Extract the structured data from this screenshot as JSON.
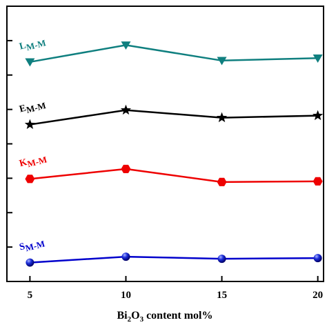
{
  "chart_data": {
    "type": "line",
    "xlabel": {
      "base": "Bi",
      "sub1": "2",
      "mid": "O",
      "sub2": "3",
      "rest": " content mol%"
    },
    "x": [
      5,
      10,
      15,
      20
    ],
    "xlim": [
      3.8,
      20.3
    ],
    "xticks": [
      "5",
      "10",
      "15",
      "20"
    ],
    "ylim": [
      0,
      8
    ],
    "y_tick_count": 8,
    "series": [
      {
        "name": "S",
        "sub": "M-M",
        "color": "#0000cc",
        "marker": "sphere",
        "values": [
          0.55,
          0.72,
          0.66,
          0.68
        ]
      },
      {
        "name": "K",
        "sub": "M-M",
        "color": "#ee0000",
        "marker": "hexagon",
        "values": [
          2.98,
          3.27,
          2.89,
          2.91
        ]
      },
      {
        "name": "E",
        "sub": "M-M",
        "color": "#000000",
        "marker": "star",
        "values": [
          4.56,
          4.98,
          4.76,
          4.82
        ]
      },
      {
        "name": "L",
        "sub": "M-M",
        "color": "#0f7f7f",
        "marker": "triangle-down",
        "values": [
          6.38,
          6.87,
          6.42,
          6.49
        ]
      }
    ]
  }
}
